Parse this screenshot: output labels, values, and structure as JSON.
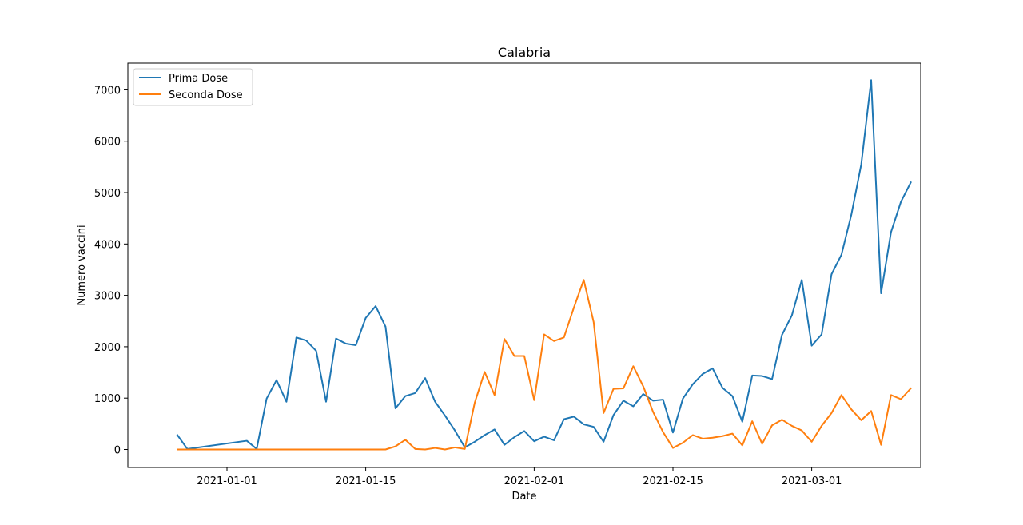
{
  "chart_data": {
    "type": "line",
    "title": "Calabria",
    "xlabel": "Date",
    "ylabel": "Numero vaccini",
    "xlim": [
      "2020-12-22",
      "2021-03-12"
    ],
    "ylim": [
      -350,
      7520
    ],
    "grid": false,
    "legend_position": "top-left",
    "x_ticks": [
      "2021-01-01",
      "2021-01-15",
      "2021-02-01",
      "2021-02-15",
      "2021-03-01"
    ],
    "y_ticks": [
      0,
      1000,
      2000,
      3000,
      4000,
      5000,
      6000,
      7000
    ],
    "colors": {
      "Prima Dose": "#1f77b4",
      "Seconda Dose": "#ff7f0e"
    },
    "series": [
      {
        "name": "Prima Dose",
        "points": [
          [
            "2020-12-27",
            280
          ],
          [
            "2020-12-28",
            10
          ],
          [
            "2021-01-03",
            170
          ],
          [
            "2021-01-04",
            10
          ],
          [
            "2021-01-05",
            990
          ],
          [
            "2021-01-06",
            1350
          ],
          [
            "2021-01-07",
            930
          ],
          [
            "2021-01-08",
            2180
          ],
          [
            "2021-01-09",
            2120
          ],
          [
            "2021-01-10",
            1920
          ],
          [
            "2021-01-11",
            930
          ],
          [
            "2021-01-12",
            2160
          ],
          [
            "2021-01-13",
            2060
          ],
          [
            "2021-01-14",
            2030
          ],
          [
            "2021-01-15",
            2560
          ],
          [
            "2021-01-16",
            2790
          ],
          [
            "2021-01-17",
            2390
          ],
          [
            "2021-01-18",
            800
          ],
          [
            "2021-01-19",
            1040
          ],
          [
            "2021-01-20",
            1100
          ],
          [
            "2021-01-21",
            1390
          ],
          [
            "2021-01-22",
            930
          ],
          [
            "2021-01-23",
            660
          ],
          [
            "2021-01-24",
            370
          ],
          [
            "2021-01-25",
            40
          ],
          [
            "2021-01-26",
            150
          ],
          [
            "2021-01-27",
            280
          ],
          [
            "2021-01-28",
            390
          ],
          [
            "2021-01-29",
            90
          ],
          [
            "2021-01-30",
            240
          ],
          [
            "2021-01-31",
            360
          ],
          [
            "2021-02-01",
            160
          ],
          [
            "2021-02-02",
            250
          ],
          [
            "2021-02-03",
            180
          ],
          [
            "2021-02-04",
            590
          ],
          [
            "2021-02-05",
            640
          ],
          [
            "2021-02-06",
            490
          ],
          [
            "2021-02-07",
            440
          ],
          [
            "2021-02-08",
            150
          ],
          [
            "2021-02-09",
            670
          ],
          [
            "2021-02-10",
            950
          ],
          [
            "2021-02-11",
            840
          ],
          [
            "2021-02-12",
            1080
          ],
          [
            "2021-02-13",
            950
          ],
          [
            "2021-02-14",
            970
          ],
          [
            "2021-02-15",
            330
          ],
          [
            "2021-02-16",
            990
          ],
          [
            "2021-02-17",
            1270
          ],
          [
            "2021-02-18",
            1470
          ],
          [
            "2021-02-19",
            1580
          ],
          [
            "2021-02-20",
            1200
          ],
          [
            "2021-02-21",
            1040
          ],
          [
            "2021-02-22",
            540
          ],
          [
            "2021-02-23",
            1440
          ],
          [
            "2021-02-24",
            1430
          ],
          [
            "2021-02-25",
            1370
          ],
          [
            "2021-02-26",
            2230
          ],
          [
            "2021-02-27",
            2610
          ],
          [
            "2021-02-28",
            3300
          ],
          [
            "2021-03-01",
            2020
          ],
          [
            "2021-03-02",
            2240
          ],
          [
            "2021-03-03",
            3410
          ],
          [
            "2021-03-04",
            3790
          ],
          [
            "2021-03-05",
            4570
          ],
          [
            "2021-03-06",
            5550
          ],
          [
            "2021-03-07",
            7190
          ],
          [
            "2021-03-08",
            3040
          ],
          [
            "2021-03-09",
            4230
          ],
          [
            "2021-03-10",
            4820
          ],
          [
            "2021-03-11",
            5200
          ]
        ]
      },
      {
        "name": "Seconda Dose",
        "points": [
          [
            "2020-12-27",
            0
          ],
          [
            "2021-01-17",
            0
          ],
          [
            "2021-01-18",
            60
          ],
          [
            "2021-01-19",
            190
          ],
          [
            "2021-01-20",
            10
          ],
          [
            "2021-01-21",
            0
          ],
          [
            "2021-01-22",
            30
          ],
          [
            "2021-01-23",
            0
          ],
          [
            "2021-01-24",
            40
          ],
          [
            "2021-01-25",
            10
          ],
          [
            "2021-01-26",
            910
          ],
          [
            "2021-01-27",
            1510
          ],
          [
            "2021-01-28",
            1060
          ],
          [
            "2021-01-29",
            2150
          ],
          [
            "2021-01-30",
            1820
          ],
          [
            "2021-01-31",
            1820
          ],
          [
            "2021-02-01",
            960
          ],
          [
            "2021-02-02",
            2240
          ],
          [
            "2021-02-03",
            2110
          ],
          [
            "2021-02-04",
            2180
          ],
          [
            "2021-02-05",
            2760
          ],
          [
            "2021-02-06",
            3300
          ],
          [
            "2021-02-07",
            2480
          ],
          [
            "2021-02-08",
            710
          ],
          [
            "2021-02-09",
            1180
          ],
          [
            "2021-02-10",
            1190
          ],
          [
            "2021-02-11",
            1620
          ],
          [
            "2021-02-12",
            1230
          ],
          [
            "2021-02-13",
            730
          ],
          [
            "2021-02-14",
            340
          ],
          [
            "2021-02-15",
            30
          ],
          [
            "2021-02-16",
            130
          ],
          [
            "2021-02-17",
            280
          ],
          [
            "2021-02-18",
            210
          ],
          [
            "2021-02-19",
            230
          ],
          [
            "2021-02-20",
            260
          ],
          [
            "2021-02-21",
            310
          ],
          [
            "2021-02-22",
            80
          ],
          [
            "2021-02-23",
            550
          ],
          [
            "2021-02-24",
            110
          ],
          [
            "2021-02-25",
            470
          ],
          [
            "2021-02-26",
            580
          ],
          [
            "2021-02-27",
            460
          ],
          [
            "2021-02-28",
            370
          ],
          [
            "2021-03-01",
            150
          ],
          [
            "2021-03-02",
            460
          ],
          [
            "2021-03-03",
            710
          ],
          [
            "2021-03-04",
            1060
          ],
          [
            "2021-03-05",
            780
          ],
          [
            "2021-03-06",
            570
          ],
          [
            "2021-03-07",
            750
          ],
          [
            "2021-03-08",
            90
          ],
          [
            "2021-03-09",
            1060
          ],
          [
            "2021-03-10",
            980
          ],
          [
            "2021-03-11",
            1190
          ]
        ]
      }
    ]
  }
}
